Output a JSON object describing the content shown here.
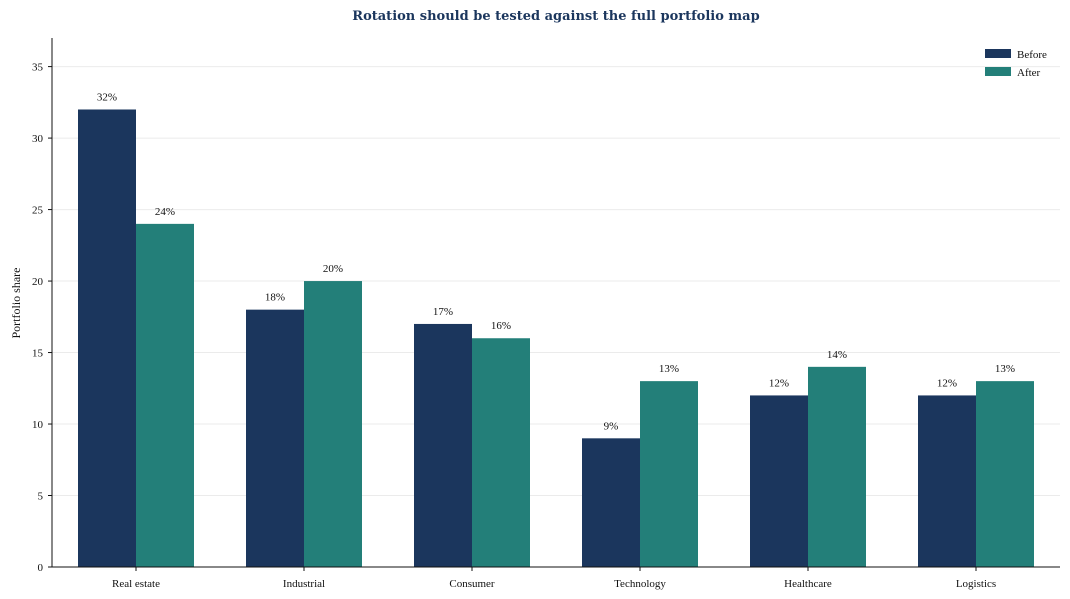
{
  "chart_data": {
    "type": "bar",
    "title": "Rotation should be tested against the full portfolio map",
    "xlabel": "",
    "ylabel": "Portfolio share",
    "categories": [
      "Real estate",
      "Industrial",
      "Consumer",
      "Technology",
      "Healthcare",
      "Logistics"
    ],
    "series": [
      {
        "name": "Before",
        "color": "#1b365d",
        "values": [
          32,
          18,
          17,
          9,
          12,
          12
        ],
        "labels": [
          "32%",
          "18%",
          "17%",
          "9%",
          "12%",
          "12%"
        ]
      },
      {
        "name": "After",
        "color": "#237f79",
        "values": [
          24,
          20,
          16,
          13,
          14,
          13
        ],
        "labels": [
          "24%",
          "20%",
          "16%",
          "13%",
          "14%",
          "13%"
        ]
      }
    ],
    "ylim": [
      0,
      37
    ],
    "yticks": [
      0,
      5,
      10,
      15,
      20,
      25,
      30,
      35
    ],
    "grid": "horizontal",
    "legend_position": "top-right",
    "title_color": "#1b365d"
  }
}
